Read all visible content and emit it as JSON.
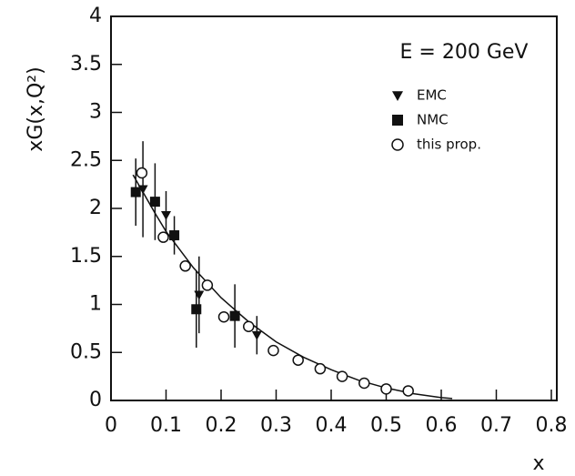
{
  "chart_data": {
    "type": "scatter",
    "xlabel": "x",
    "ylabel": "xG(x,Q²)",
    "annotation": "E = 200 GeV",
    "xlim": [
      0,
      0.8
    ],
    "xticks": [
      0,
      0.1,
      0.2,
      0.3,
      0.4,
      0.5,
      0.6,
      0.7,
      0.8
    ],
    "ylim": [
      0,
      4
    ],
    "yticks": [
      0,
      0.5,
      1,
      1.5,
      2,
      2.5,
      3,
      3.5,
      4
    ],
    "color": "#111111",
    "series": [
      {
        "name": "EMC",
        "marker": "triangle-down",
        "x": [
          0.058,
          0.1,
          0.16,
          0.265
        ],
        "values": [
          2.2,
          1.93,
          1.1,
          0.68
        ],
        "errors": [
          0.5,
          0.25,
          0.4,
          0.2
        ]
      },
      {
        "name": "NMC",
        "marker": "square",
        "x": [
          0.045,
          0.08,
          0.115,
          0.155,
          0.225
        ],
        "values": [
          2.17,
          2.07,
          1.72,
          0.95,
          0.88
        ],
        "errors": [
          0.35,
          0.4,
          0.2,
          0.4,
          0.33
        ]
      },
      {
        "name": "this prop.",
        "marker": "open-circle",
        "x": [
          0.056,
          0.095,
          0.135,
          0.175,
          0.205,
          0.25,
          0.295,
          0.34,
          0.38,
          0.42,
          0.46,
          0.5,
          0.54
        ],
        "values": [
          2.37,
          1.7,
          1.4,
          1.2,
          0.87,
          0.77,
          0.52,
          0.42,
          0.33,
          0.25,
          0.18,
          0.12,
          0.1
        ]
      }
    ],
    "fit": {
      "x": [
        0.04,
        0.06,
        0.08,
        0.1,
        0.15,
        0.2,
        0.25,
        0.3,
        0.35,
        0.4,
        0.45,
        0.5,
        0.55,
        0.6,
        0.62
      ],
      "values": [
        2.35,
        2.15,
        1.95,
        1.76,
        1.38,
        1.07,
        0.82,
        0.61,
        0.45,
        0.32,
        0.21,
        0.13,
        0.07,
        0.03,
        0.02
      ]
    }
  }
}
